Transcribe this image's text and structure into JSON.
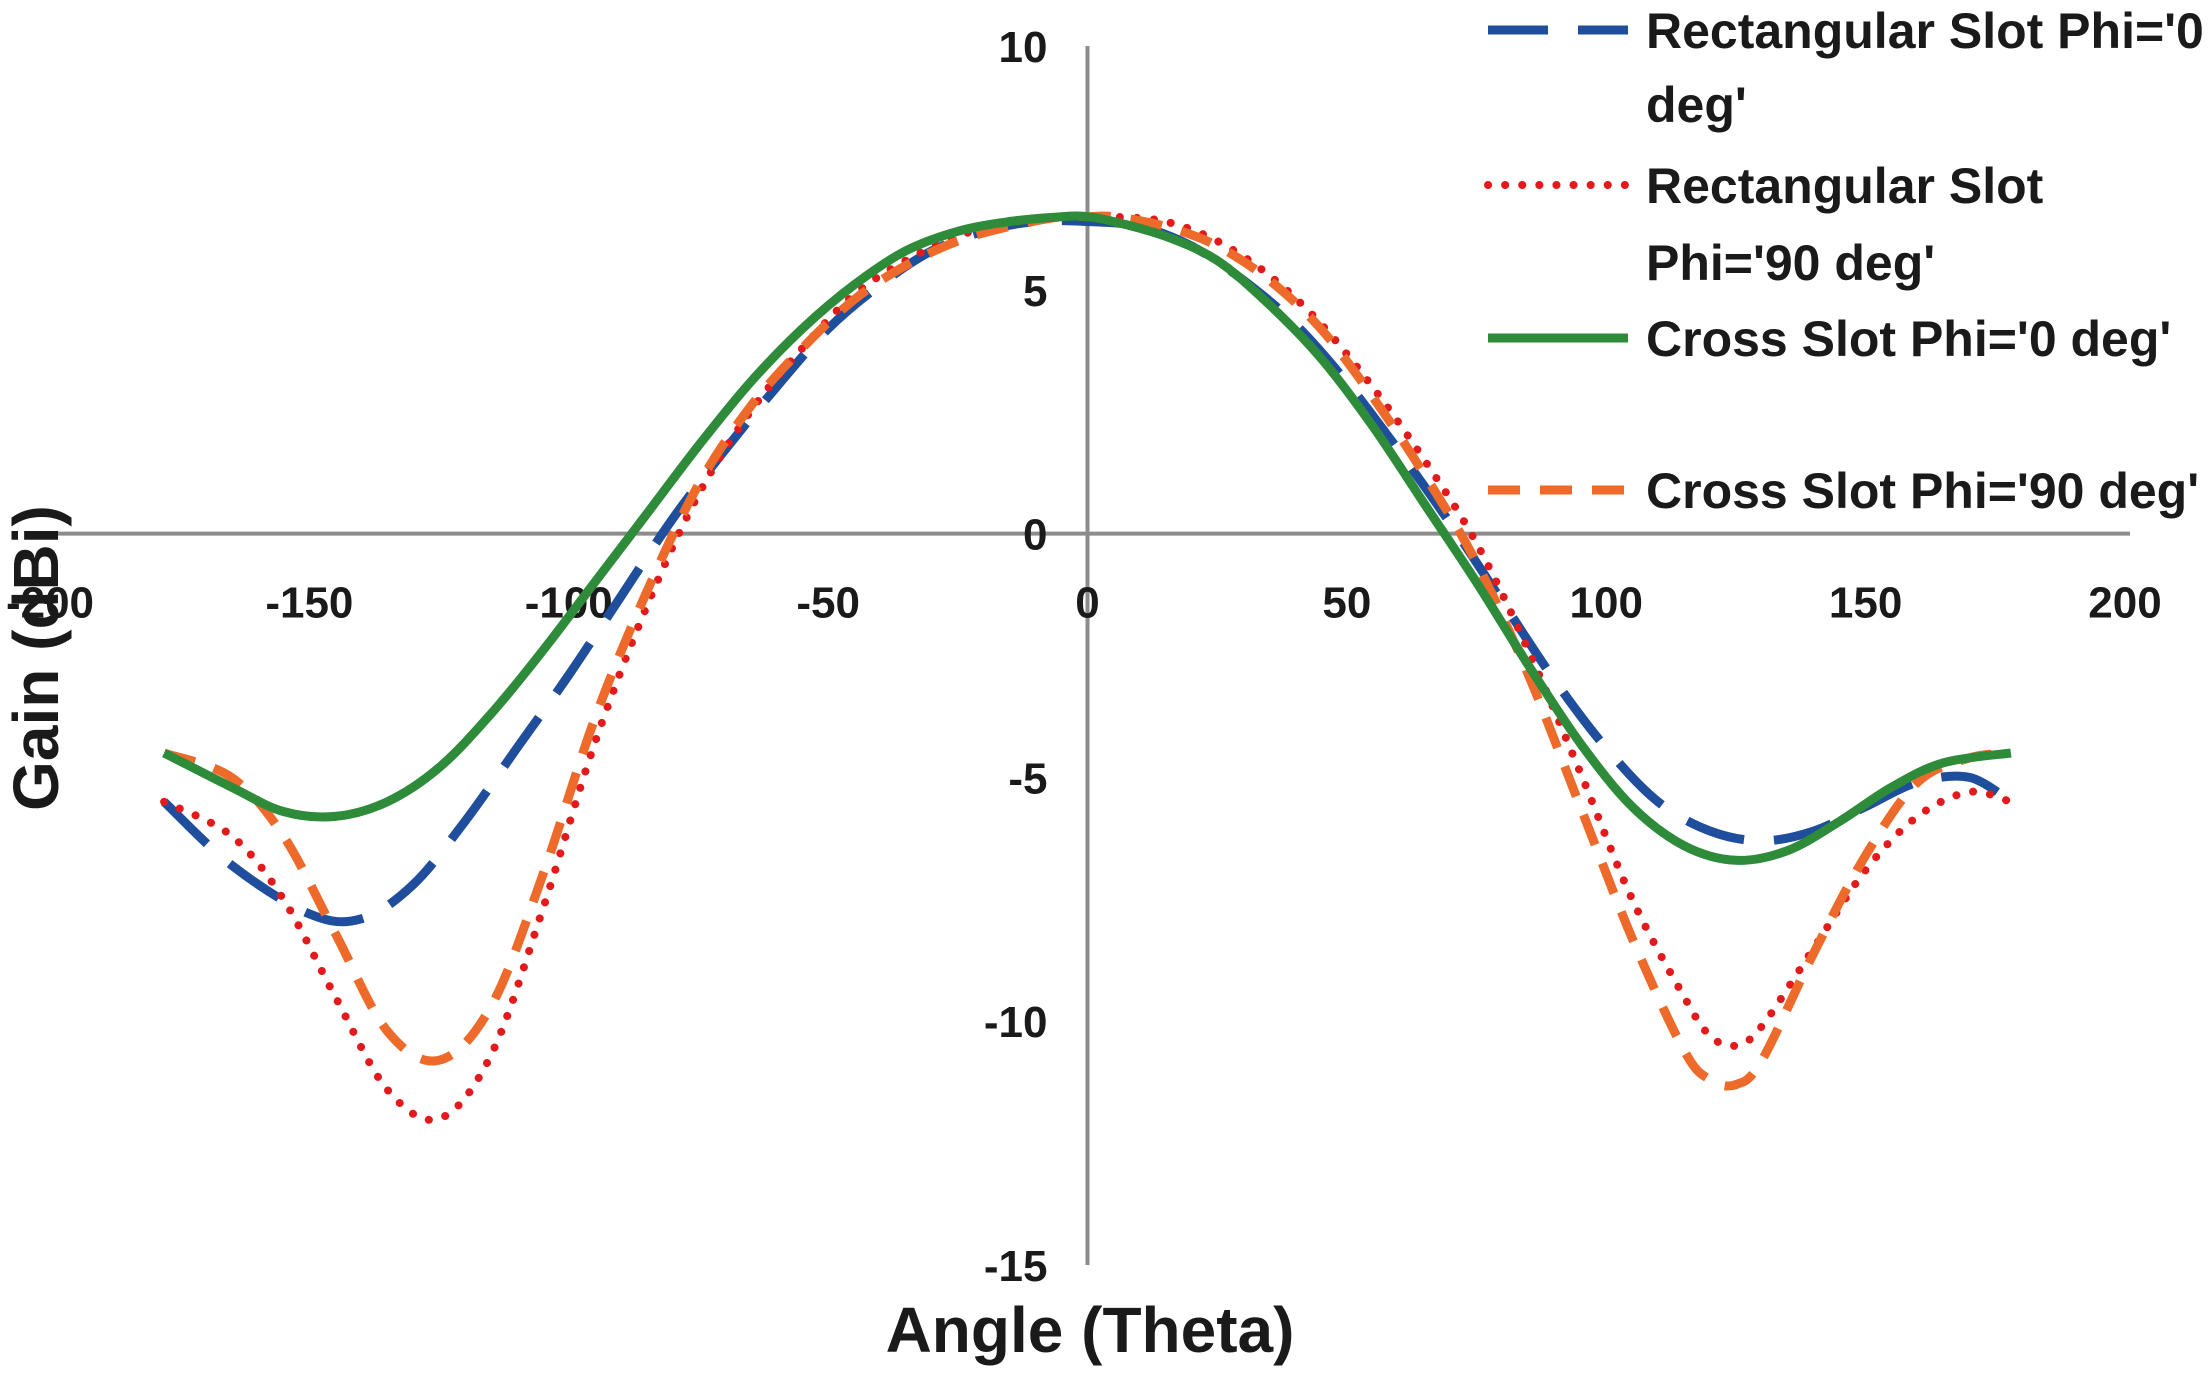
{
  "chart_data": {
    "type": "line",
    "title": "",
    "xlabel": "Angle (Theta)",
    "ylabel": "Gain (dBi)",
    "xlim": [
      -200,
      200
    ],
    "ylim": [
      -15,
      10
    ],
    "x_ticks": [
      -200,
      -150,
      -100,
      -50,
      0,
      50,
      100,
      150,
      200
    ],
    "x_tick_labels": [
      "-200",
      "-150",
      "-100",
      "-50",
      "0",
      "50",
      "100",
      "150",
      "200"
    ],
    "y_ticks": [
      -15,
      -10,
      -5,
      0,
      5,
      10
    ],
    "y_tick_labels": [
      "-15",
      "-10",
      "-5",
      "0",
      "5",
      "10"
    ],
    "grid": false,
    "legend_position": "top-right",
    "series": [
      {
        "name": "Rectangular Slot  Phi='0 deg'",
        "label_lines": [
          "Rectangular Slot  Phi='0",
          "deg'"
        ],
        "color": "#1f4e9c",
        "style": "dash",
        "x": [
          -178,
          -165,
          -150,
          -140,
          -130,
          -120,
          -110,
          -100,
          -90,
          -80,
          -70,
          -60,
          -50,
          -40,
          -30,
          -20,
          -10,
          0,
          10,
          20,
          30,
          40,
          50,
          60,
          70,
          80,
          90,
          100,
          110,
          120,
          130,
          140,
          150,
          160,
          170,
          178
        ],
        "y": [
          -5.5,
          -6.8,
          -7.8,
          -7.9,
          -7.2,
          -5.9,
          -4.4,
          -2.9,
          -1.3,
          0.3,
          1.7,
          3.0,
          4.2,
          5.1,
          5.8,
          6.2,
          6.4,
          6.4,
          6.3,
          5.9,
          5.2,
          4.3,
          3.1,
          1.7,
          0.2,
          -1.4,
          -3.0,
          -4.4,
          -5.5,
          -6.1,
          -6.3,
          -6.1,
          -5.6,
          -5.1,
          -5.0,
          -5.5
        ]
      },
      {
        "name": "Rectangular Slot Phi='90 deg'",
        "label_lines": [
          "Rectangular Slot",
          "Phi='90 deg'"
        ],
        "color": "#e31a1c",
        "style": "dot",
        "x": [
          -178,
          -165,
          -155,
          -145,
          -135,
          -125,
          -115,
          -105,
          -95,
          -85,
          -75,
          -65,
          -55,
          -45,
          -35,
          -25,
          -15,
          -5,
          0,
          5,
          15,
          25,
          35,
          45,
          55,
          65,
          75,
          85,
          95,
          105,
          115,
          120,
          125,
          130,
          140,
          150,
          160,
          170,
          178
        ],
        "y": [
          -5.5,
          -6.2,
          -7.5,
          -9.5,
          -11.4,
          -12.0,
          -10.7,
          -7.7,
          -4.3,
          -1.5,
          0.8,
          2.5,
          3.8,
          4.9,
          5.6,
          6.1,
          6.4,
          6.5,
          6.5,
          6.5,
          6.4,
          6.0,
          5.3,
          4.3,
          3.0,
          1.5,
          -0.2,
          -2.4,
          -4.9,
          -7.5,
          -9.5,
          -10.3,
          -10.5,
          -10.1,
          -8.5,
          -6.9,
          -5.8,
          -5.3,
          -5.5
        ]
      },
      {
        "name": "Cross Slot Phi='0 deg'",
        "label_lines": [
          "Cross Slot Phi='0 deg'"
        ],
        "color": "#2e8b3a",
        "style": "solid",
        "x": [
          -178,
          -165,
          -155,
          -145,
          -135,
          -125,
          -115,
          -105,
          -95,
          -85,
          -75,
          -65,
          -55,
          -45,
          -35,
          -25,
          -15,
          -5,
          0,
          5,
          15,
          25,
          35,
          45,
          55,
          65,
          75,
          85,
          95,
          105,
          115,
          125,
          135,
          145,
          155,
          165,
          178
        ],
        "y": [
          -4.5,
          -5.2,
          -5.7,
          -5.8,
          -5.5,
          -4.8,
          -3.7,
          -2.4,
          -1.0,
          0.4,
          1.8,
          3.1,
          4.2,
          5.1,
          5.8,
          6.2,
          6.4,
          6.5,
          6.5,
          6.4,
          6.1,
          5.6,
          4.7,
          3.6,
          2.2,
          0.6,
          -1.0,
          -2.7,
          -4.3,
          -5.6,
          -6.4,
          -6.7,
          -6.5,
          -5.9,
          -5.2,
          -4.7,
          -4.5
        ]
      },
      {
        "name": "Cross Slot Phi='90 deg'",
        "label_lines": [
          "Cross Slot Phi='90 deg'"
        ],
        "color": "#ed6a2a",
        "style": "dash",
        "x": [
          -178,
          -165,
          -155,
          -145,
          -135,
          -125,
          -115,
          -105,
          -95,
          -85,
          -75,
          -65,
          -55,
          -45,
          -35,
          -25,
          -15,
          -5,
          0,
          5,
          15,
          25,
          35,
          45,
          55,
          65,
          75,
          85,
          95,
          105,
          115,
          120,
          125,
          130,
          140,
          150,
          160,
          170,
          178
        ],
        "y": [
          -4.5,
          -5.0,
          -6.2,
          -8.2,
          -10.2,
          -10.8,
          -9.7,
          -7.0,
          -3.8,
          -1.2,
          1.0,
          2.6,
          3.8,
          4.8,
          5.5,
          6.0,
          6.3,
          6.5,
          6.5,
          6.5,
          6.3,
          5.9,
          5.2,
          4.2,
          2.8,
          1.2,
          -0.6,
          -2.9,
          -5.6,
          -8.3,
          -10.6,
          -11.2,
          -11.3,
          -10.8,
          -8.6,
          -6.6,
          -5.1,
          -4.6,
          -4.5
        ]
      }
    ]
  }
}
